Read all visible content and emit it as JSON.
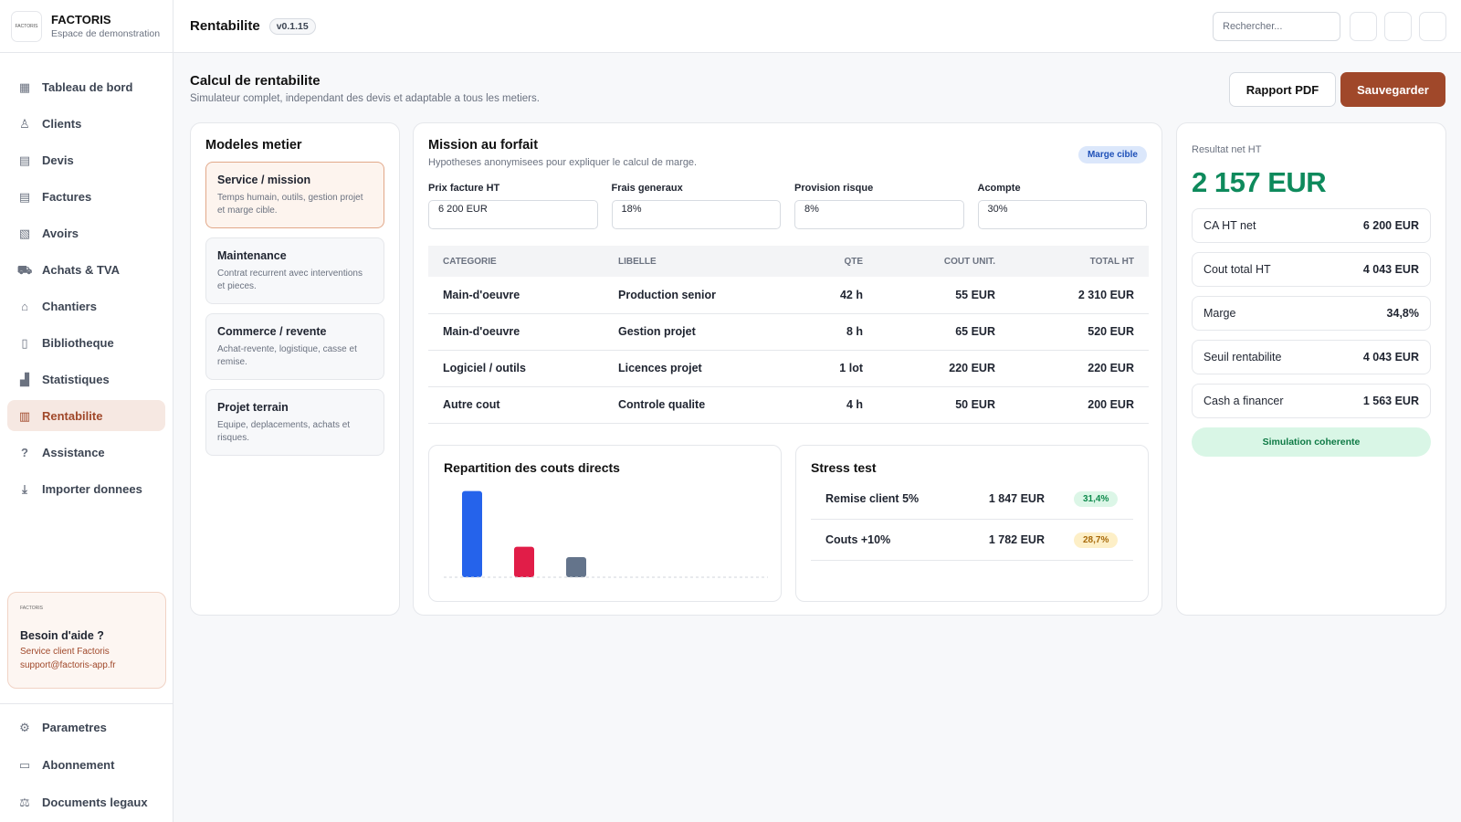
{
  "brand": {
    "logo_text": "FACTORIS",
    "name": "FACTORIS",
    "subtitle": "Espace de demonstration"
  },
  "sidebar": {
    "items": [
      {
        "label": "Tableau de bord",
        "icon": "dashboard-icon"
      },
      {
        "label": "Clients",
        "icon": "users-icon"
      },
      {
        "label": "Devis",
        "icon": "document-icon"
      },
      {
        "label": "Factures",
        "icon": "invoice-icon"
      },
      {
        "label": "Avoirs",
        "icon": "credit-note-icon"
      },
      {
        "label": "Achats & TVA",
        "icon": "cart-icon"
      },
      {
        "label": "Chantiers",
        "icon": "building-icon"
      },
      {
        "label": "Bibliotheque",
        "icon": "book-icon"
      },
      {
        "label": "Statistiques",
        "icon": "chart-icon"
      },
      {
        "label": "Rentabilite",
        "icon": "calculator-icon",
        "active": true
      },
      {
        "label": "Assistance",
        "icon": "help-icon"
      },
      {
        "label": "Importer donnees",
        "icon": "download-icon"
      }
    ],
    "help": {
      "logo_text": "FACTORIS",
      "title": "Besoin d'aide ?",
      "line1": "Service client Factoris",
      "line2": "support@factoris-app.fr"
    },
    "bottom": [
      {
        "label": "Parametres",
        "icon": "gear-icon"
      },
      {
        "label": "Abonnement",
        "icon": "card-icon"
      },
      {
        "label": "Documents legaux",
        "icon": "scale-icon"
      }
    ]
  },
  "topbar": {
    "title": "Rentabilite",
    "version": "v0.1.15",
    "search_placeholder": "Rechercher..."
  },
  "page": {
    "title": "Calcul de rentabilite",
    "subtitle": "Simulateur complet, independant des devis et adaptable a tous les metiers.",
    "pdf_button": "Rapport PDF",
    "save_button": "Sauvegarder"
  },
  "models": {
    "title": "Modeles metier",
    "items": [
      {
        "title": "Service / mission",
        "desc": "Temps humain, outils, gestion projet et marge cible.",
        "selected": true
      },
      {
        "title": "Maintenance",
        "desc": "Contrat recurrent avec interventions et pieces."
      },
      {
        "title": "Commerce / revente",
        "desc": "Achat-revente, logistique, casse et remise."
      },
      {
        "title": "Projet terrain",
        "desc": "Equipe, deplacements, achats et risques."
      }
    ]
  },
  "mission": {
    "title": "Mission au forfait",
    "subtitle": "Hypotheses anonymisees pour expliquer le calcul de marge.",
    "badge": "Marge cible",
    "fields": [
      {
        "label": "Prix facture HT",
        "value": "6 200 EUR"
      },
      {
        "label": "Frais generaux",
        "value": "18%"
      },
      {
        "label": "Provision risque",
        "value": "8%"
      },
      {
        "label": "Acompte",
        "value": "30%"
      }
    ],
    "table": {
      "headers": [
        "CATEGORIE",
        "LIBELLE",
        "QTE",
        "COUT UNIT.",
        "TOTAL HT"
      ],
      "rows": [
        [
          "Main-d'oeuvre",
          "Production senior",
          "42 h",
          "55 EUR",
          "2 310 EUR"
        ],
        [
          "Main-d'oeuvre",
          "Gestion projet",
          "8 h",
          "65 EUR",
          "520 EUR"
        ],
        [
          "Logiciel / outils",
          "Licences projet",
          "1 lot",
          "220 EUR",
          "220 EUR"
        ],
        [
          "Autre cout",
          "Controle qualite",
          "4 h",
          "50 EUR",
          "200 EUR"
        ]
      ]
    },
    "chart_title": "Repartition des couts directs",
    "stress": {
      "title": "Stress test",
      "rows": [
        {
          "label": "Remise client 5%",
          "value": "1 847 EUR",
          "pct": "31,4%",
          "tone": "green"
        },
        {
          "label": "Couts +10%",
          "value": "1 782 EUR",
          "pct": "28,7%",
          "tone": "amber"
        }
      ]
    }
  },
  "chart_data": {
    "type": "bar",
    "title": "Repartition des couts directs",
    "categories": [
      "",
      "",
      ""
    ],
    "values": [
      2830,
      1000,
      660
    ],
    "colors": [
      "#2563eb",
      "#e11d48",
      "#64748b"
    ],
    "ylim": [
      0,
      3000
    ],
    "grid": false
  },
  "result": {
    "label": "Resultat net HT",
    "value": "2 157 EUR",
    "kpis": [
      {
        "label": "CA HT net",
        "value": "6 200 EUR"
      },
      {
        "label": "Cout total HT",
        "value": "4 043 EUR"
      },
      {
        "label": "Marge",
        "value": "34,8%"
      },
      {
        "label": "Seuil rentabilite",
        "value": "4 043 EUR"
      },
      {
        "label": "Cash a financer",
        "value": "1 563 EUR"
      }
    ],
    "status": "Simulation coherente"
  },
  "colors": {
    "accent": "#a0482a",
    "positive": "#0e8a5c",
    "info": "#1e50b8"
  }
}
